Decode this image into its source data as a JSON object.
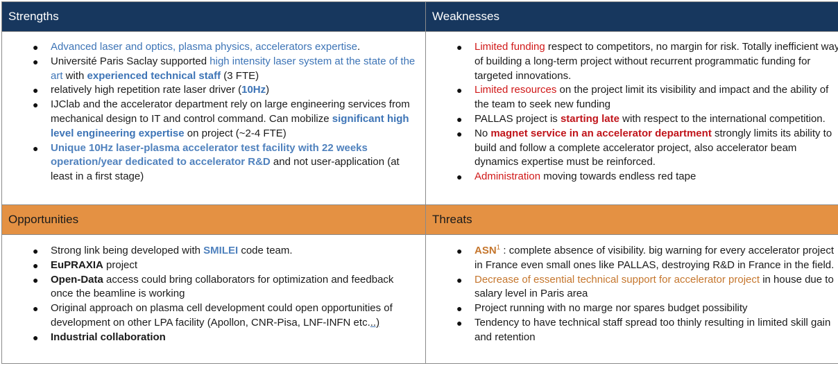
{
  "quadrants": {
    "strengths": {
      "title": "Strengths",
      "items": [
        {
          "segments": [
            {
              "t": "Advanced ",
              "s": "blue"
            },
            {
              "t": "laser",
              "s": "blue-dark"
            },
            {
              "t": " and ",
              "s": "blue"
            },
            {
              "t": "optics, plasma physics, accelerators",
              "s": "blue-dark"
            },
            {
              "t": " expertise",
              "s": "blue"
            },
            {
              "t": ".",
              "s": "plain"
            }
          ]
        },
        {
          "segments": [
            {
              "t": "Université Paris Saclay supported ",
              "s": "plain"
            },
            {
              "t": "high intensity laser system at the state of the art",
              "s": "blue"
            },
            {
              "t": " with ",
              "s": "plain"
            },
            {
              "t": "experienced technical staff",
              "s": "blue-b"
            },
            {
              "t": " (3 FTE)",
              "s": "plain"
            }
          ]
        },
        {
          "segments": [
            {
              "t": "relatively high repetition rate laser driver (",
              "s": "plain"
            },
            {
              "t": "10Hz",
              "s": "blue-b"
            },
            {
              "t": ")",
              "s": "plain"
            }
          ]
        },
        {
          "segments": [
            {
              "t": "IJClab and the accelerator department rely on large engineering services from mechanical design to IT and control command. Can mobilize ",
              "s": "plain"
            },
            {
              "t": "significant high level engineering expertise",
              "s": "blue-b"
            },
            {
              "t": " on project (~2-4 FTE)",
              "s": "plain"
            }
          ]
        },
        {
          "segments": [
            {
              "t": "Unique 10Hz laser-plasma accelerator test facility with 22 weeks operation/year dedicated to accelerator R&D",
              "s": "blue-l"
            },
            {
              "t": " and not user-application (at least in a first stage)",
              "s": "plain"
            }
          ]
        }
      ]
    },
    "weaknesses": {
      "title": "Weaknesses",
      "items": [
        {
          "segments": [
            {
              "t": "Limited funding",
              "s": "red"
            },
            {
              "t": " respect to competitors, no margin for risk. Totally inefficient way of building a long-term project without recurrent programmatic funding for targeted innovations.",
              "s": "plain"
            }
          ]
        },
        {
          "segments": [
            {
              "t": "Limited resources",
              "s": "red"
            },
            {
              "t": " on the project limit its visibility and impact and the ability of the team to seek new funding",
              "s": "plain"
            }
          ]
        },
        {
          "segments": [
            {
              "t": "PALLAS project is ",
              "s": "plain"
            },
            {
              "t": "starting late",
              "s": "red-b"
            },
            {
              "t": " with respect to the international competition.",
              "s": "plain"
            }
          ]
        },
        {
          "segments": [
            {
              "t": "No ",
              "s": "plain"
            },
            {
              "t": "magnet service in an accelerator department",
              "s": "red-b"
            },
            {
              "t": " strongly limits its ability to build and follow a complete accelerator project, also accelerator beam dynamics expertise must be reinforced.",
              "s": "plain"
            }
          ]
        },
        {
          "segments": [
            {
              "t": "Administration",
              "s": "red"
            },
            {
              "t": " moving towards endless red tape",
              "s": "plain"
            }
          ]
        }
      ]
    },
    "opportunities": {
      "title": "Opportunities",
      "items": [
        {
          "segments": [
            {
              "t": "Strong link being developed with ",
              "s": "plain"
            },
            {
              "t": "SMILEI",
              "s": "blue-l"
            },
            {
              "t": " code team.",
              "s": "plain"
            }
          ]
        },
        {
          "segments": [
            {
              "t": "EuPRAXIA",
              "s": "bold"
            },
            {
              "t": " project",
              "s": "plain"
            }
          ]
        },
        {
          "segments": [
            {
              "t": "Open-Data",
              "s": "bold"
            },
            {
              "t": " access could bring collaborators for optimization and feedback once the beamline is working",
              "s": "plain"
            }
          ]
        },
        {
          "segments": [
            {
              "t": "Original approach on plasma cell development could open opportunities of development on other LPA facility (Apollon, CNR-Pisa, LNF-INFN etc.",
              "s": "plain"
            },
            {
              "t": "..)",
              "s": "underline"
            }
          ]
        },
        {
          "segments": [
            {
              "t": "Industrial collaboration",
              "s": "bold"
            }
          ]
        }
      ]
    },
    "threats": {
      "title": "Threats",
      "items": [
        {
          "segments": [
            {
              "t": "ASN",
              "s": "orange-b"
            },
            {
              "t": "1",
              "s": "sup"
            },
            {
              "t": " : complete absence of visibility.  big warning for every accelerator project in France even small ones like PALLAS, destroying R&D in France in the field.",
              "s": "plain"
            }
          ]
        },
        {
          "segments": [
            {
              "t": "Decrease of essential technical support for accelerator project",
              "s": "orange"
            },
            {
              "t": " in house due to salary level in Paris area",
              "s": "plain"
            }
          ]
        },
        {
          "segments": [
            {
              "t": "Project running with no marge nor spares budget possibility",
              "s": "plain"
            }
          ]
        },
        {
          "segments": [
            {
              "t": "Tendency to have technical staff spread too thinly resulting in limited skill gain and retention",
              "s": "plain"
            }
          ]
        }
      ]
    }
  },
  "colors": {
    "header_dark": "#17375e",
    "header_orange": "#e49143",
    "accent_blue": "#3d74b6",
    "accent_red": "#d01818",
    "accent_orange": "#c5762d"
  },
  "icons": {
    "bullet": "bullet-dot-icon"
  }
}
